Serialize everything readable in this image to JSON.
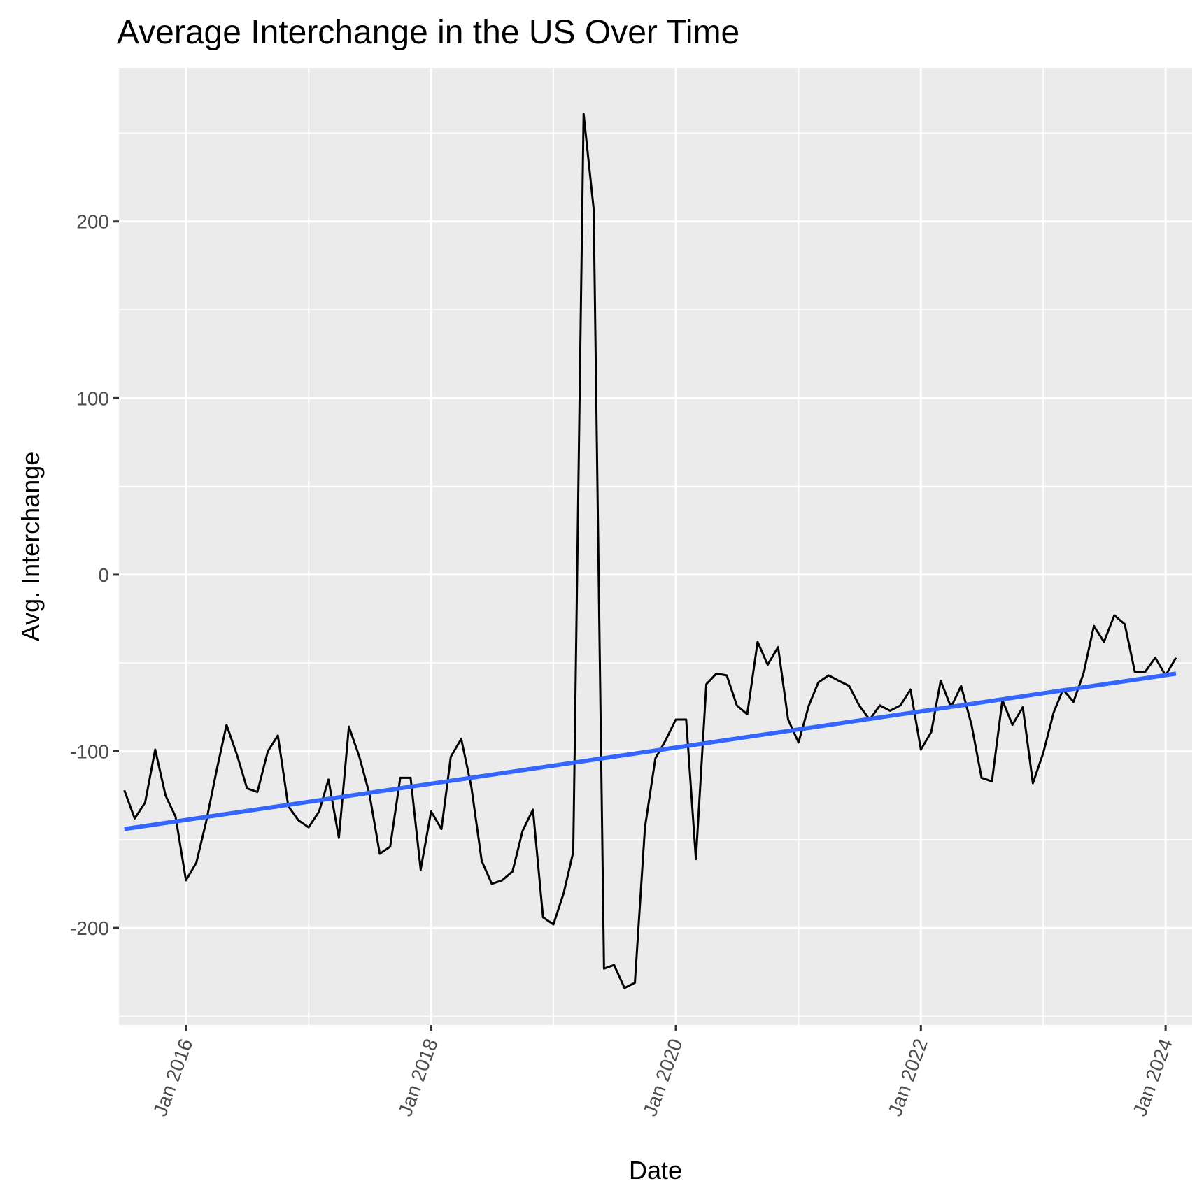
{
  "chart_data": {
    "type": "line",
    "title": "Average Interchange in the US Over Time",
    "xlabel": "Date",
    "ylabel": "Avg. Interchange",
    "x_axis_type": "date",
    "xlim": [
      "2015-06-15",
      "2024-03-20"
    ],
    "ylim": [
      -255,
      287
    ],
    "y_ticks": [
      -200,
      -100,
      0,
      100,
      200
    ],
    "y_tick_labels": [
      "-200",
      "-100",
      "0",
      "100",
      "200"
    ],
    "x_ticks": [
      "2016-01-01",
      "2018-01-01",
      "2020-01-01",
      "2022-01-01",
      "2024-01-01"
    ],
    "x_tick_labels": [
      "Jan 2016",
      "Jan 2018",
      "Jan 2020",
      "Jan 2022",
      "Jan 2024"
    ],
    "x_minor_ticks": [
      "2017-01-01",
      "2019-01-01",
      "2021-01-01",
      "2023-01-01"
    ],
    "y_minor_ticks": [
      -250,
      -150,
      -50,
      50,
      150,
      250
    ],
    "grid": true,
    "background": "#ebebeb",
    "grid_color": "#ffffff",
    "series": [
      {
        "color": "#000000",
        "x": [
          "2015-07-01",
          "2015-08-01",
          "2015-09-01",
          "2015-10-01",
          "2015-11-01",
          "2015-12-01",
          "2016-01-01",
          "2016-02-01",
          "2016-03-01",
          "2016-04-01",
          "2016-05-01",
          "2016-06-01",
          "2016-07-01",
          "2016-08-01",
          "2016-09-01",
          "2016-10-01",
          "2016-11-01",
          "2016-12-01",
          "2017-01-01",
          "2017-02-01",
          "2017-03-01",
          "2017-04-01",
          "2017-05-01",
          "2017-06-01",
          "2017-07-01",
          "2017-08-01",
          "2017-09-01",
          "2017-10-01",
          "2017-11-01",
          "2017-12-01",
          "2018-01-01",
          "2018-02-01",
          "2018-03-01",
          "2018-04-01",
          "2018-05-01",
          "2018-06-01",
          "2018-07-01",
          "2018-08-01",
          "2018-09-01",
          "2018-10-01",
          "2018-11-01",
          "2018-12-01",
          "2019-01-01",
          "2019-02-01",
          "2019-03-01",
          "2019-04-01",
          "2019-05-01",
          "2019-06-01",
          "2019-07-01",
          "2019-08-01",
          "2019-09-01",
          "2019-10-01",
          "2019-11-01",
          "2019-12-01",
          "2020-01-01",
          "2020-02-01",
          "2020-03-01",
          "2020-04-01",
          "2020-05-01",
          "2020-06-01",
          "2020-07-01",
          "2020-08-01",
          "2020-09-01",
          "2020-10-01",
          "2020-11-01",
          "2020-12-01",
          "2021-01-01",
          "2021-02-01",
          "2021-03-01",
          "2021-04-01",
          "2021-05-01",
          "2021-06-01",
          "2021-07-01",
          "2021-08-01",
          "2021-09-01",
          "2021-10-01",
          "2021-11-01",
          "2021-12-01",
          "2022-01-01",
          "2022-02-01",
          "2022-03-01",
          "2022-04-01",
          "2022-05-01",
          "2022-06-01",
          "2022-07-01",
          "2022-08-01",
          "2022-09-01",
          "2022-10-01",
          "2022-11-01",
          "2022-12-01",
          "2023-01-01",
          "2023-02-01",
          "2023-03-01",
          "2023-04-01",
          "2023-05-01",
          "2023-06-01",
          "2023-07-01",
          "2023-08-01",
          "2023-09-01",
          "2023-10-01",
          "2023-11-01",
          "2023-12-01",
          "2024-01-01",
          "2024-02-01"
        ],
        "values": [
          -122,
          -138,
          -129,
          -99,
          -125,
          -137,
          -173,
          -163,
          -140,
          -111,
          -85,
          -102,
          -121,
          -123,
          -100,
          -91,
          -131,
          -139,
          -143,
          -134,
          -116,
          -149,
          -86,
          -103,
          -124,
          -158,
          -154,
          -115,
          -115,
          -167,
          -134,
          -144,
          -103,
          -93,
          -120,
          -162,
          -175,
          -173,
          -168,
          -145,
          -133,
          -194,
          -198,
          -180,
          -157,
          261,
          207,
          -223,
          -221,
          -234,
          -231,
          -143,
          -104,
          -94,
          -82,
          -82,
          -161,
          -62,
          -56,
          -57,
          -74,
          -79,
          -38,
          -51,
          -41,
          -82,
          -95,
          -74,
          -61,
          -57,
          -60,
          -63,
          -74,
          -82,
          -74,
          -77,
          -74,
          -65,
          -99,
          -89,
          -60,
          -75,
          -63,
          -85,
          -115,
          -117,
          -71,
          -85,
          -75,
          -118,
          -101,
          -78,
          -65,
          -72,
          -56,
          -29,
          -38,
          -23,
          -28,
          -55,
          -55,
          -47,
          -57,
          -47
        ]
      },
      {
        "color": "#3366ff",
        "x": [
          "2015-07-01",
          "2024-02-01"
        ],
        "values": [
          -144,
          -56
        ]
      }
    ]
  }
}
